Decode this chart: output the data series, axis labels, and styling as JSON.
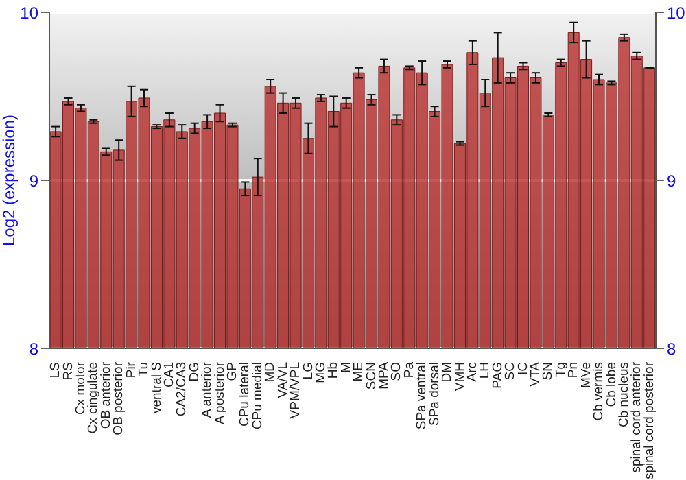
{
  "chart_data": {
    "type": "bar",
    "ylabel": "Log2 (expression)",
    "categories": [
      "LS",
      "RS",
      "Cx motor",
      "Cx cingulate",
      "OB anterior",
      "OB posterior",
      "Pir",
      "Tu",
      "ventral S",
      "CA1",
      "CA2/CA3",
      "DG",
      "A anterior",
      "A posterior",
      "GP",
      "CPu lateral",
      "CPu medial",
      "MD",
      "VA/VL",
      "VPM/VPL",
      "LG",
      "MG",
      "Hb",
      "M",
      "ME",
      "SCN",
      "MPA",
      "SO",
      "Pa",
      "SPa ventral",
      "SPa dorsal",
      "DM",
      "VMH",
      "Arc",
      "LH",
      "PAG",
      "SC",
      "IC",
      "VTA",
      "SN",
      "Tg",
      "Pn",
      "MVe",
      "Cb vermis",
      "Cb lobe",
      "Cb nucleus",
      "spinal cord anterior",
      "spinal cord posterior"
    ],
    "values": [
      9.29,
      9.47,
      9.43,
      9.35,
      9.17,
      9.18,
      9.47,
      9.49,
      9.32,
      9.36,
      9.29,
      9.31,
      9.35,
      9.4,
      9.33,
      8.95,
      9.02,
      9.56,
      9.46,
      9.46,
      9.25,
      9.49,
      9.41,
      9.46,
      9.64,
      9.48,
      9.68,
      9.36,
      9.67,
      9.64,
      9.41,
      9.69,
      9.22,
      9.76,
      9.52,
      9.73,
      9.61,
      9.68,
      9.61,
      9.39,
      9.7,
      9.88,
      9.72,
      9.6,
      9.58,
      9.85,
      9.74,
      9.67
    ],
    "errors": [
      0.03,
      0.02,
      0.02,
      0.01,
      0.02,
      0.06,
      0.09,
      0.05,
      0.01,
      0.04,
      0.04,
      0.03,
      0.04,
      0.05,
      0.01,
      0.04,
      0.11,
      0.04,
      0.06,
      0.03,
      0.09,
      0.02,
      0.09,
      0.03,
      0.03,
      0.03,
      0.04,
      0.03,
      0.01,
      0.07,
      0.03,
      0.02,
      0.01,
      0.07,
      0.08,
      0.15,
      0.03,
      0.02,
      0.03,
      0.01,
      0.02,
      0.06,
      0.11,
      0.03,
      0.01,
      0.02,
      0.02,
      null
    ],
    "color": "#b83232",
    "ylim": [
      8,
      10
    ],
    "yticks": [
      8,
      9,
      10
    ],
    "y2lim": [
      8,
      10
    ],
    "y2ticks": [
      8,
      9,
      10
    ],
    "grid": "y"
  }
}
